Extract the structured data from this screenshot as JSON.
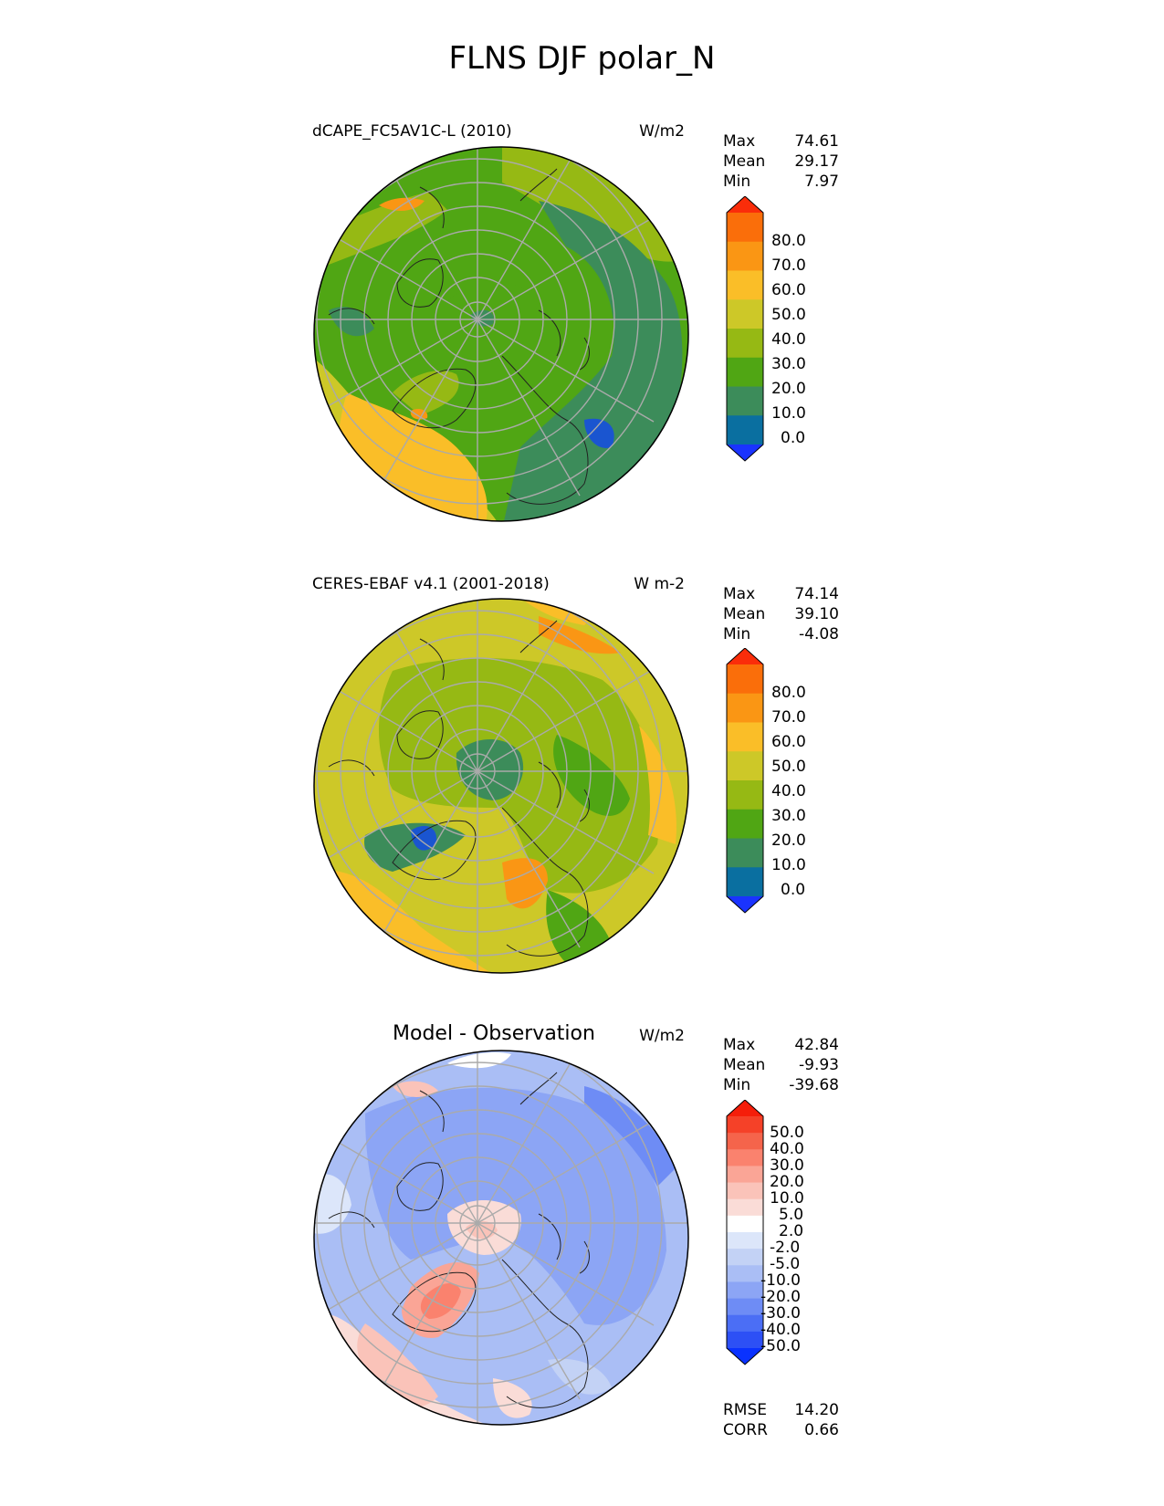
{
  "figure": {
    "title": "FLNS DJF polar_N"
  },
  "panels": [
    {
      "title": "dCAPE_FC5AV1C-L (2010)",
      "units": "W/m2",
      "stats": [
        {
          "label": "Max",
          "value": "74.61"
        },
        {
          "label": "Mean",
          "value": "29.17"
        },
        {
          "label": "Min",
          "value": "7.97"
        }
      ],
      "colorbar": {
        "labels": [
          "80.0",
          "70.0",
          "60.0",
          "50.0",
          "40.0",
          "30.0",
          "20.0",
          "10.0",
          "0.0"
        ],
        "colors": [
          "#1a33ff",
          "#0a6fa0",
          "#3c8c5a",
          "#50a614",
          "#96b914",
          "#cdc828",
          "#fabe28",
          "#fa9614",
          "#fa6e0a",
          "#fa2d0a"
        ]
      }
    },
    {
      "title": "CERES-EBAF v4.1 (2001-2018)",
      "units": "W m-2",
      "stats": [
        {
          "label": "Max",
          "value": "74.14"
        },
        {
          "label": "Mean",
          "value": "39.10"
        },
        {
          "label": "Min",
          "value": "-4.08"
        }
      ],
      "colorbar": {
        "labels": [
          "80.0",
          "70.0",
          "60.0",
          "50.0",
          "40.0",
          "30.0",
          "20.0",
          "10.0",
          "0.0"
        ],
        "colors": [
          "#1a33ff",
          "#0a6fa0",
          "#3c8c5a",
          "#50a614",
          "#96b914",
          "#cdc828",
          "#fabe28",
          "#fa9614",
          "#fa6e0a",
          "#fa2d0a"
        ]
      }
    },
    {
      "title": "Model - Observation",
      "units": "W/m2",
      "stats": [
        {
          "label": "Max",
          "value": "42.84"
        },
        {
          "label": "Mean",
          "value": "-9.93"
        },
        {
          "label": "Min",
          "value": "-39.68"
        }
      ],
      "colorbar": {
        "labels": [
          "50.0",
          "40.0",
          "30.0",
          "20.0",
          "10.0",
          "5.0",
          "2.0",
          "-2.0",
          "-5.0",
          "-10.0",
          "-20.0",
          "-30.0",
          "-40.0",
          "-50.0"
        ],
        "colors": [
          "#0a32ff",
          "#2d50f5",
          "#4b6ef5",
          "#6e8cf5",
          "#8ca5f5",
          "#aabef5",
          "#c3d2f5",
          "#dce6fa",
          "#ffffff",
          "#fadcd7",
          "#fac3b9",
          "#faa596",
          "#fa826e",
          "#f5644b",
          "#f54128",
          "#f51e0a"
        ]
      },
      "metrics": [
        {
          "label": "RMSE",
          "value": "14.20"
        },
        {
          "label": "CORR",
          "value": "0.66"
        }
      ]
    }
  ]
}
